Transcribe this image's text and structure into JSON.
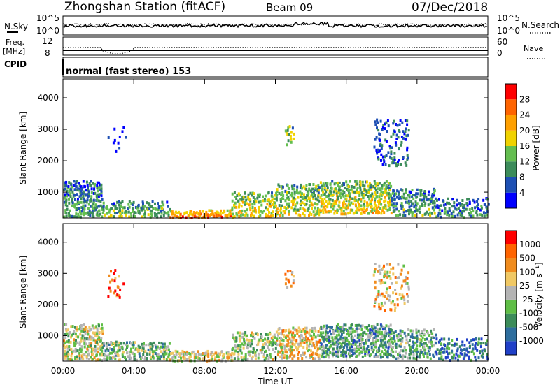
{
  "header": {
    "station": "Zhongshan Station (fitACF)",
    "beam": "Beam 09",
    "date": "07/Dec/2018"
  },
  "noise_panel": {
    "left_label": "N.Sky",
    "right_label": "N.Search",
    "ticks": [
      "10^5",
      "10^0"
    ]
  },
  "freq_panel": {
    "left_label_1": "Freq.",
    "left_label_2": "[MHz]",
    "cpid_label": "CPID",
    "right_label": "Nave",
    "left_ticks": [
      "12",
      "8"
    ],
    "right_ticks": [
      "60",
      "0"
    ]
  },
  "cpid_text": "normal (fast stereo) 153",
  "chart_data": [
    {
      "type": "heatmap",
      "title": "",
      "xlabel": "Time UT",
      "ylabel": "Slant Range [km]",
      "x_ticks": [
        "00:00",
        "04:00",
        "08:00",
        "12:00",
        "16:00",
        "20:00",
        "00:00"
      ],
      "y_ticks": [
        1000,
        2000,
        3000,
        4000
      ],
      "xlim": [
        0,
        24
      ],
      "ylim": [
        180,
        4600
      ],
      "colorbar": {
        "label": "Power [dB]",
        "ticks": [
          "4",
          "8",
          "12",
          "16",
          "20",
          "24",
          "28"
        ],
        "colors": [
          "#0000ff",
          "#1e50b4",
          "#3c8c5a",
          "#64be50",
          "#f0d200",
          "#ffa000",
          "#ff6400",
          "#ff0000"
        ]
      },
      "scatter_regions": [
        {
          "t": [
            0.0,
            2.2
          ],
          "r": [
            200,
            1350
          ],
          "bias": 0.35,
          "density": 0.85
        },
        {
          "t": [
            2.2,
            6.0
          ],
          "r": [
            200,
            700
          ],
          "bias": 0.45,
          "density": 0.7
        },
        {
          "t": [
            6.0,
            9.5
          ],
          "r": [
            180,
            420
          ],
          "bias": 0.85,
          "density": 0.9
        },
        {
          "t": [
            9.5,
            12.0
          ],
          "r": [
            200,
            1000
          ],
          "bias": 0.6,
          "density": 0.75
        },
        {
          "t": [
            12.0,
            14.5
          ],
          "r": [
            250,
            1250
          ],
          "bias": 0.55,
          "density": 0.8
        },
        {
          "t": [
            14.5,
            18.5
          ],
          "r": [
            300,
            1350
          ],
          "bias": 0.6,
          "density": 0.85
        },
        {
          "t": [
            18.5,
            21.0
          ],
          "r": [
            250,
            1100
          ],
          "bias": 0.4,
          "density": 0.7
        },
        {
          "t": [
            21.0,
            24.0
          ],
          "r": [
            200,
            800
          ],
          "bias": 0.3,
          "density": 0.6
        },
        {
          "t": [
            12.5,
            13.0
          ],
          "r": [
            2500,
            3100
          ],
          "bias": 0.55,
          "density": 0.6
        },
        {
          "t": [
            17.5,
            19.5
          ],
          "r": [
            1800,
            3300
          ],
          "bias": 0.2,
          "density": 0.35
        },
        {
          "t": [
            2.5,
            3.5
          ],
          "r": [
            2200,
            3100
          ],
          "bias": 0.1,
          "density": 0.15
        }
      ]
    },
    {
      "type": "heatmap",
      "title": "",
      "xlabel": "Time UT",
      "ylabel": "Slant Range [km]",
      "x_ticks": [
        "00:00",
        "04:00",
        "08:00",
        "12:00",
        "16:00",
        "20:00",
        "00:00"
      ],
      "y_ticks": [
        1000,
        2000,
        3000,
        4000
      ],
      "xlim": [
        0,
        24
      ],
      "ylim": [
        180,
        4600
      ],
      "colorbar": {
        "label": "Velocity [m s⁻¹]",
        "ticks": [
          "1000",
          "500",
          "100",
          "25",
          "-25",
          "-100",
          "-500",
          "-1000"
        ],
        "colors": [
          "#2040c8",
          "#2e6e9e",
          "#3c8c5a",
          "#5fbe46",
          "#b4b4b4",
          "#f0c864",
          "#f08c1e",
          "#ff6400",
          "#ff0000"
        ]
      },
      "scatter_regions": [
        {
          "t": [
            0.0,
            2.2
          ],
          "r": [
            200,
            1350
          ],
          "bias": 0.5,
          "density": 0.85
        },
        {
          "t": [
            2.2,
            6.0
          ],
          "r": [
            200,
            800
          ],
          "bias": 0.4,
          "density": 0.75
        },
        {
          "t": [
            6.0,
            9.5
          ],
          "r": [
            180,
            500
          ],
          "bias": 0.55,
          "density": 0.85
        },
        {
          "t": [
            9.5,
            12.0
          ],
          "r": [
            200,
            1100
          ],
          "bias": 0.45,
          "density": 0.75
        },
        {
          "t": [
            12.0,
            14.5
          ],
          "r": [
            250,
            1250
          ],
          "bias": 0.6,
          "density": 0.8
        },
        {
          "t": [
            14.5,
            18.5
          ],
          "r": [
            300,
            1350
          ],
          "bias": 0.3,
          "density": 0.85
        },
        {
          "t": [
            18.5,
            21.0
          ],
          "r": [
            250,
            1200
          ],
          "bias": 0.35,
          "density": 0.7
        },
        {
          "t": [
            21.0,
            24.0
          ],
          "r": [
            200,
            900
          ],
          "bias": 0.15,
          "density": 0.6
        },
        {
          "t": [
            12.5,
            13.0
          ],
          "r": [
            2500,
            3100
          ],
          "bias": 0.7,
          "density": 0.6
        },
        {
          "t": [
            17.5,
            19.5
          ],
          "r": [
            1800,
            3300
          ],
          "bias": 0.6,
          "density": 0.35
        },
        {
          "t": [
            2.5,
            3.5
          ],
          "r": [
            2200,
            3100
          ],
          "bias": 0.8,
          "density": 0.15
        }
      ]
    }
  ]
}
